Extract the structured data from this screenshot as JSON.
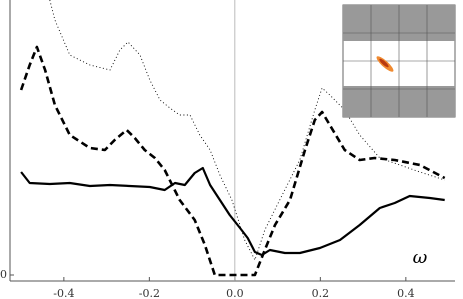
{
  "chart_data": {
    "type": "line",
    "annotation": "ω",
    "xlim": [
      -0.526,
      0.515
    ],
    "ylim": [
      -0.06,
      2.75
    ],
    "xticks": [
      -0.4,
      -0.2,
      {
        "value": 0,
        "label": "0.0"
      },
      0.2,
      0.4
    ],
    "yticks": [
      0
    ],
    "series": [
      {
        "color": "#000000",
        "style": "solid",
        "x": [
          -0.5,
          -0.48,
          -0.433,
          -0.386,
          -0.339,
          -0.292,
          -0.246,
          -0.199,
          -0.164,
          -0.14,
          -0.117,
          -0.094,
          -0.075,
          -0.058,
          -0.035,
          -0.012,
          0.012,
          0.03,
          0.047,
          0.063,
          0.082,
          0.117,
          0.152,
          0.199,
          0.246,
          0.292,
          0.339,
          0.374,
          0.409,
          0.456,
          0.491
        ],
        "values": [
          1.03,
          0.92,
          0.91,
          0.92,
          0.89,
          0.9,
          0.89,
          0.88,
          0.85,
          0.92,
          0.9,
          1.02,
          1.07,
          0.9,
          0.75,
          0.6,
          0.47,
          0.37,
          0.23,
          0.2,
          0.25,
          0.22,
          0.22,
          0.27,
          0.35,
          0.5,
          0.67,
          0.72,
          0.79,
          0.77,
          0.75
        ]
      },
      {
        "color": "#000000",
        "style": "dashed",
        "x": [
          -0.5,
          -0.48,
          -0.463,
          -0.444,
          -0.421,
          -0.386,
          -0.339,
          -0.304,
          -0.281,
          -0.253,
          -0.234,
          -0.211,
          -0.187,
          -0.164,
          -0.129,
          -0.094,
          -0.07,
          -0.047,
          0,
          0.047,
          0.07,
          0.094,
          0.129,
          0.164,
          0.187,
          0.204,
          0.222,
          0.257,
          0.292,
          0.327,
          0.374,
          0.433,
          0.491
        ],
        "values": [
          1.85,
          2.1,
          2.28,
          2.05,
          1.7,
          1.4,
          1.27,
          1.25,
          1.35,
          1.45,
          1.37,
          1.25,
          1.17,
          1.05,
          0.75,
          0.55,
          0.3,
          0,
          0,
          0,
          0.25,
          0.5,
          0.75,
          1.25,
          1.55,
          1.63,
          1.5,
          1.25,
          1.15,
          1.17,
          1.15,
          1.1,
          0.97
        ]
      },
      {
        "color": "#000000",
        "style": "dotted",
        "x": [
          -0.433,
          -0.421,
          -0.386,
          -0.339,
          -0.292,
          -0.269,
          -0.25,
          -0.222,
          -0.199,
          -0.175,
          -0.152,
          -0.129,
          -0.105,
          -0.082,
          -0.058,
          -0.035,
          -0.007,
          0.023,
          0.047,
          0.07,
          0.105,
          0.152,
          0.187,
          0.204,
          0.222,
          0.257,
          0.292,
          0.339,
          0.386,
          0.433,
          0.491
        ],
        "values": [
          2.75,
          2.55,
          2.2,
          2.1,
          2.05,
          2.25,
          2.33,
          2.2,
          1.95,
          1.75,
          1.67,
          1.6,
          1.6,
          1.4,
          1.25,
          1.0,
          0.75,
          0.35,
          0.15,
          0.45,
          0.75,
          1.15,
          1.65,
          1.87,
          1.8,
          1.65,
          1.4,
          1.17,
          1.1,
          1.03,
          0.95
        ]
      }
    ]
  }
}
